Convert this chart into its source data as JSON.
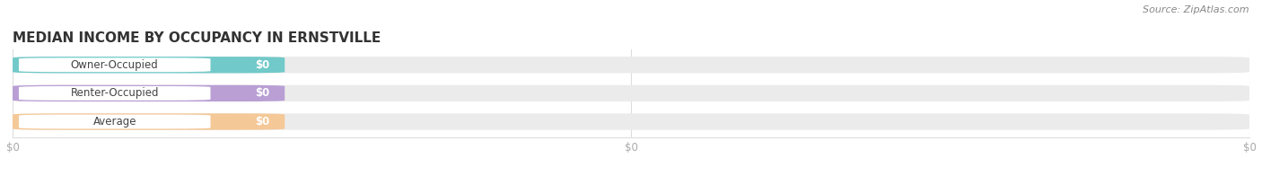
{
  "title": "MEDIAN INCOME BY OCCUPANCY IN ERNSTVILLE",
  "source": "Source: ZipAtlas.com",
  "categories": [
    "Owner-Occupied",
    "Renter-Occupied",
    "Average"
  ],
  "values": [
    0,
    0,
    0
  ],
  "bar_colors": [
    "#72c9c9",
    "#b99fd4",
    "#f5c897"
  ],
  "bar_bg_color": "#ebebeb",
  "value_labels": [
    "$0",
    "$0",
    "$0"
  ],
  "x_tick_labels": [
    "$0",
    "$0",
    "$0"
  ],
  "x_tick_positions": [
    0.0,
    0.5,
    1.0
  ],
  "background_color": "#ffffff",
  "title_fontsize": 11,
  "label_fontsize": 8.5,
  "tick_fontsize": 8.5,
  "source_fontsize": 8,
  "bar_height": 0.58,
  "xlim": [
    0.0,
    1.0
  ],
  "ylim": [
    -0.55,
    2.55
  ]
}
